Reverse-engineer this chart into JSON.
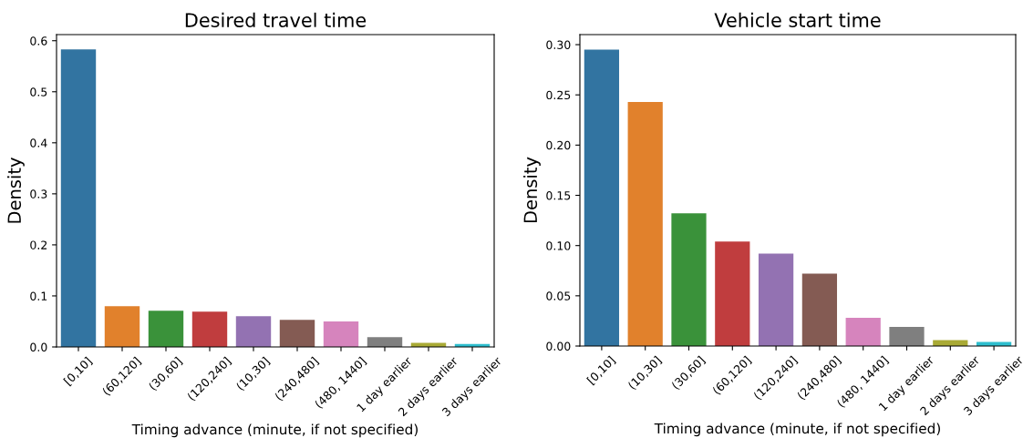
{
  "chart_data": [
    {
      "type": "bar",
      "title": "Desired travel time",
      "xlabel": "Timing advance (minute, if not specified)",
      "ylabel": "Density",
      "categories": [
        "[0,10]",
        "(60,120]",
        "(30,60]",
        "(120,240]",
        "(10,30]",
        "(240,480]",
        "(480, 1440]",
        "1 day earlier",
        "2 days earlier",
        "3 days earlier"
      ],
      "values": [
        0.583,
        0.08,
        0.071,
        0.069,
        0.06,
        0.053,
        0.05,
        0.019,
        0.008,
        0.006
      ],
      "colors": [
        "#3274a1",
        "#e1812c",
        "#3a923a",
        "#c03d3e",
        "#9372b2",
        "#845b53",
        "#d684bd",
        "#7f7f7f",
        "#a9aa35",
        "#2ebece"
      ],
      "ylim": [
        0,
        0.612
      ],
      "yticks": [
        {
          "value": 0,
          "label": "0.0"
        },
        0.1,
        0.2,
        0.3,
        0.4,
        0.5,
        0.6
      ],
      "grid": false
    },
    {
      "type": "bar",
      "title": "Vehicle start time",
      "xlabel": "Timing advance (minute, if not specified)",
      "ylabel": "Density",
      "categories": [
        "[0,10]",
        "(10,30]",
        "(30,60]",
        "(60,120]",
        "(120,240]",
        "(240,480]",
        "(480, 1440]",
        "1 day earlier",
        "2 days earlier",
        "3 days earlier"
      ],
      "values": [
        0.295,
        0.243,
        0.132,
        0.104,
        0.092,
        0.072,
        0.028,
        0.019,
        0.006,
        0.004
      ],
      "colors": [
        "#3274a1",
        "#e1812c",
        "#3a923a",
        "#c03d3e",
        "#9372b2",
        "#845b53",
        "#d684bd",
        "#7f7f7f",
        "#a9aa35",
        "#2ebece"
      ],
      "ylim": [
        0,
        0.31
      ],
      "yticks": [
        {
          "value": 0,
          "label": "0.00"
        },
        {
          "value": 0.05,
          "label": "0.05"
        },
        {
          "value": 0.1,
          "label": "0.10"
        },
        {
          "value": 0.15,
          "label": "0.15"
        },
        {
          "value": 0.2,
          "label": "0.20"
        },
        {
          "value": 0.25,
          "label": "0.25"
        },
        {
          "value": 0.3,
          "label": "0.30"
        }
      ],
      "grid": false
    }
  ]
}
